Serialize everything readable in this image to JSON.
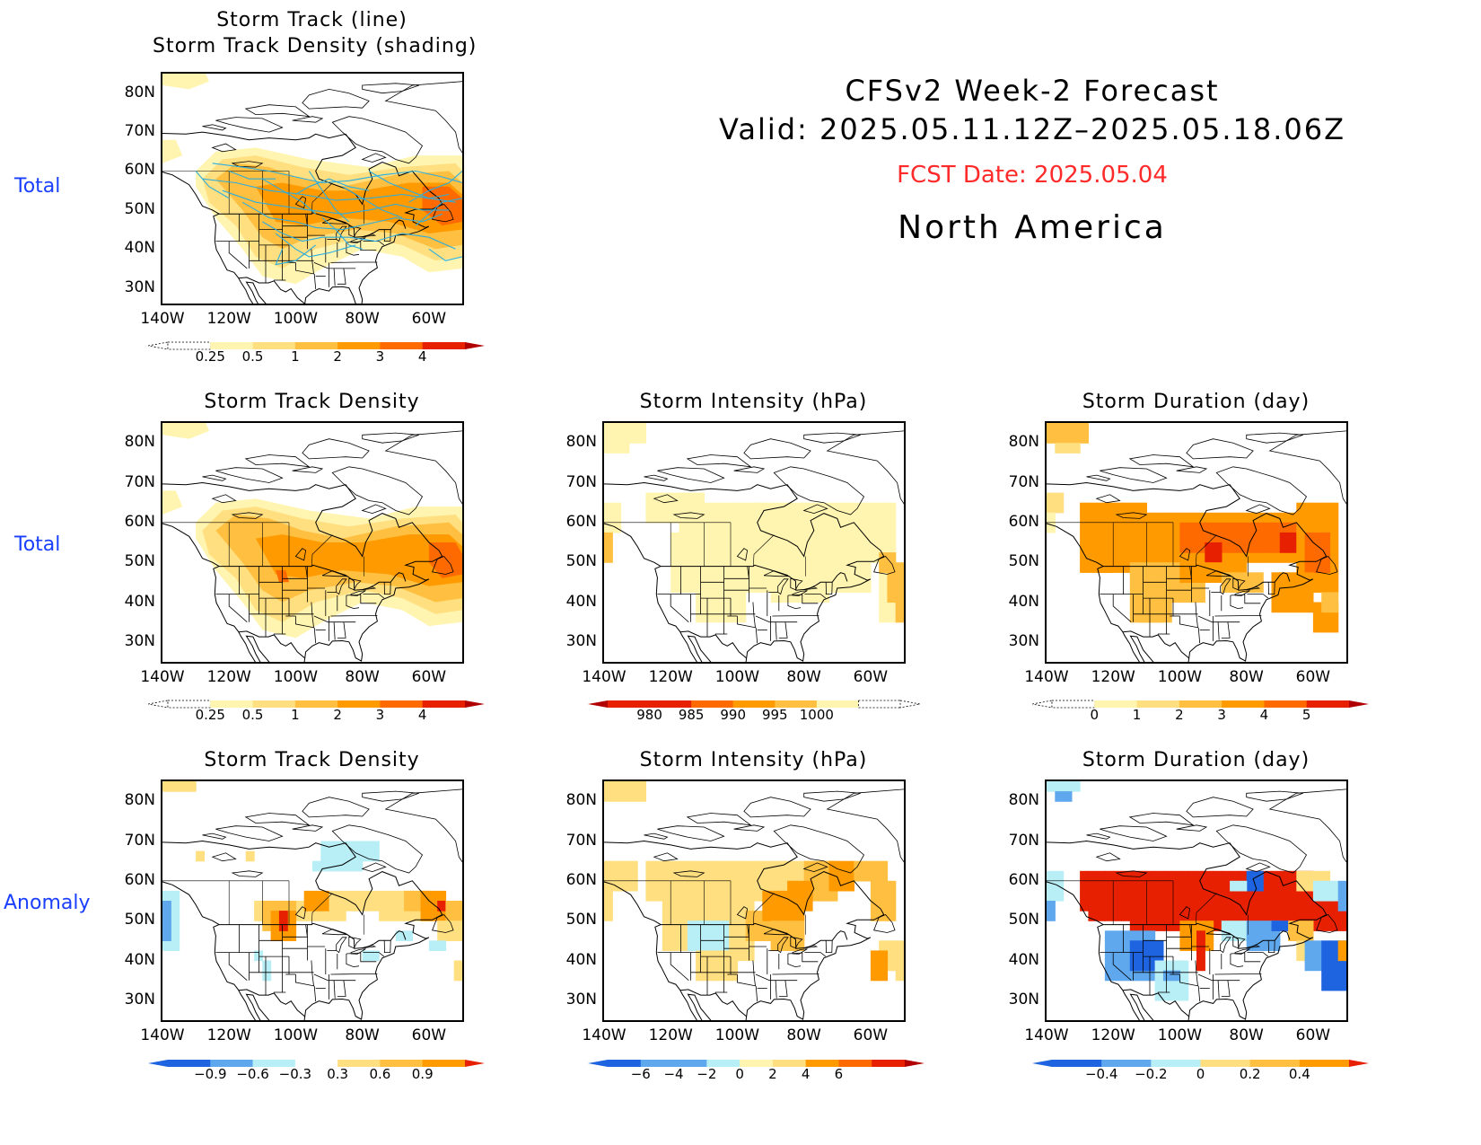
{
  "header": {
    "line1": "CFSv2  Week-2  Forecast",
    "line2": "Valid:  2025.05.11.12Z–2025.05.18.06Z",
    "fcst_date": "FCST Date: 2025.05.04",
    "region": "North  America"
  },
  "row_labels": {
    "row1": "Total",
    "row2": "Total",
    "row3": "Anomaly"
  },
  "panels": {
    "p1": {
      "title_l1": "Storm  Track  (line)",
      "title_l2": "Storm  Track  Density  (shading)"
    },
    "p2": {
      "title": "Storm  Track  Density"
    },
    "p3": {
      "title": "Storm  Intensity  (hPa)"
    },
    "p4": {
      "title": "Storm  Duration  (day)"
    },
    "p5": {
      "title": "Storm  Track  Density"
    },
    "p6": {
      "title": "Storm  Intensity  (hPa)"
    },
    "p7": {
      "title": "Storm  Duration  (day)"
    }
  },
  "axes": {
    "lat_labels": [
      "80N",
      "70N",
      "60N",
      "50N",
      "40N",
      "30N"
    ],
    "lon_labels": [
      "140W",
      "120W",
      "100W",
      "80W",
      "60W"
    ]
  },
  "colorbars": {
    "density_total": [
      "0.25",
      "0.5",
      "1",
      "2",
      "3",
      "4"
    ],
    "intensity_total": [
      "980",
      "985",
      "990",
      "995",
      "1000"
    ],
    "duration_total": [
      "0",
      "1",
      "2",
      "3",
      "4",
      "5"
    ],
    "density_anom": [
      "−0.9",
      "−0.6",
      "−0.3",
      "0.3",
      "0.6",
      "0.9"
    ],
    "intensity_anom": [
      "−6",
      "−4",
      "−2",
      "0",
      "2",
      "4",
      "6"
    ],
    "duration_anom": [
      "−0.4",
      "−0.2",
      "0",
      "0.2",
      "0.4"
    ]
  },
  "colors": {
    "yellow_light": "#fff5b0",
    "yellow": "#ffdf80",
    "orange_light": "#ffbf40",
    "orange": "#ff9a00",
    "orange_dark": "#ff6a00",
    "red": "#e62000",
    "dark_red": "#b00000",
    "blue_light": "#b8eef5",
    "blue": "#60a8ee",
    "blue_dark": "#1e64e0",
    "track_line": "#2aaee0",
    "label_blue": "#1a3fff",
    "fcst_red": "#ff2a2a"
  }
}
